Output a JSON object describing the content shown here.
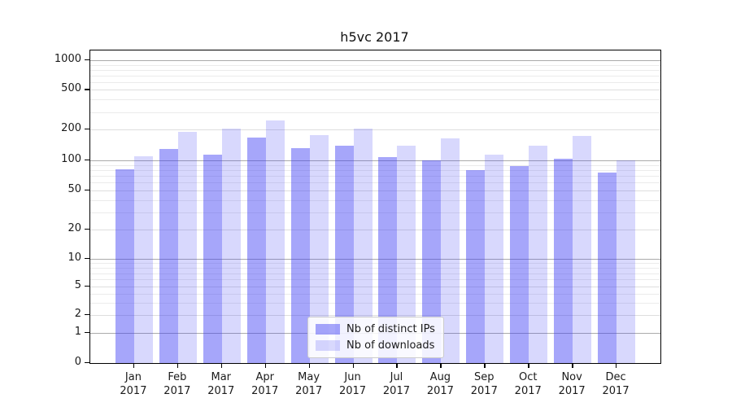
{
  "window": {
    "background": "#ffffff"
  },
  "chart_data": {
    "type": "bar",
    "title": "h5vc 2017",
    "categories": [
      "Jan",
      "Feb",
      "Mar",
      "Apr",
      "May",
      "Jun",
      "Jul",
      "Aug",
      "Sep",
      "Oct",
      "Nov",
      "Dec"
    ],
    "x_year_label": "2017",
    "series": [
      {
        "name": "Nb of distinct IPs",
        "color": "rgba(60,60,244,0.46)",
        "values": [
          81,
          128,
          114,
          167,
          132,
          140,
          108,
          100,
          80,
          88,
          104,
          75
        ]
      },
      {
        "name": "Nb of downloads",
        "color": "rgba(60,60,244,0.20)",
        "values": [
          110,
          190,
          205,
          245,
          177,
          202,
          138,
          164,
          114,
          138,
          172,
          100
        ]
      }
    ],
    "y_axis": {
      "scale": "symlog",
      "ticks": [
        {
          "value": 0,
          "frac": 1.0
        },
        {
          "value": 1,
          "frac": 0.9036
        },
        {
          "value": 2,
          "frac": 0.8464
        },
        {
          "value": 5,
          "frac": 0.7552
        },
        {
          "value": 10,
          "frac": 0.6667
        },
        {
          "value": 20,
          "frac": 0.5729
        },
        {
          "value": 50,
          "frac": 0.4479
        },
        {
          "value": 100,
          "frac": 0.3516
        },
        {
          "value": 200,
          "frac": 0.2526
        },
        {
          "value": 500,
          "frac": 0.1263
        },
        {
          "value": 1000,
          "frac": 0.0313
        }
      ],
      "decade_ticks": [
        1,
        10,
        100,
        1000
      ],
      "minor_ticks": [
        3,
        4,
        6,
        7,
        8,
        9,
        30,
        40,
        60,
        70,
        80,
        90,
        300,
        400,
        600,
        700,
        800,
        900
      ],
      "ylim": [
        0,
        1200
      ]
    },
    "grid": true,
    "legend": {
      "position": "lower-center"
    },
    "colors": {
      "grid_major": "#ababab",
      "grid_labeled": "#dedede",
      "grid_minor": "#ebebeb",
      "axis": "#000000",
      "text": "#1a1a1a"
    }
  }
}
